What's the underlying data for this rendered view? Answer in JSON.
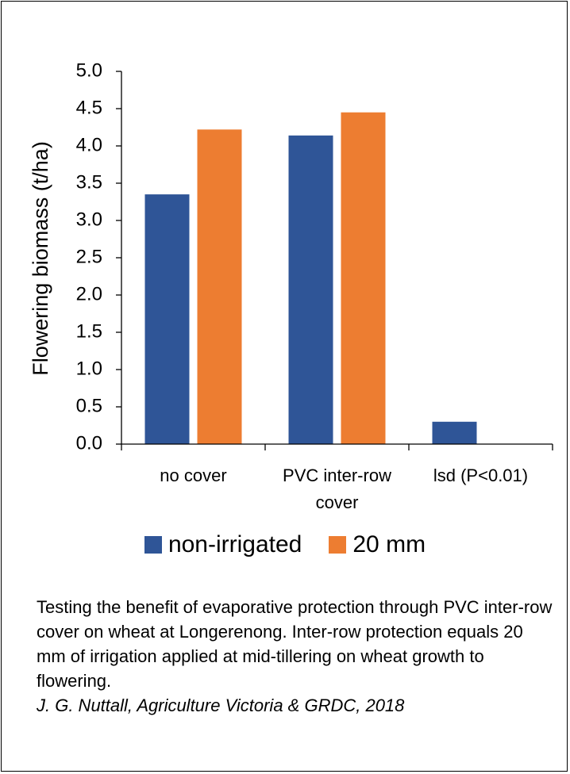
{
  "chart_data": {
    "type": "bar",
    "categories": [
      [
        "no cover"
      ],
      [
        "PVC inter-row",
        "cover"
      ],
      [
        "lsd (P<0.01)"
      ]
    ],
    "series": [
      {
        "name": "non-irrigated",
        "color": "#2F5597",
        "values": [
          3.35,
          4.14,
          0.3
        ]
      },
      {
        "name": "20 mm",
        "color": "#ED7D31",
        "values": [
          4.22,
          4.45,
          null
        ]
      }
    ],
    "yticks": [
      "0.0",
      "0.5",
      "1.0",
      "1.5",
      "2.0",
      "2.5",
      "3.0",
      "3.5",
      "4.0",
      "4.5",
      "5.0"
    ],
    "ylabel": "Flowering biomass (t/ha)",
    "ylim": [
      0,
      5
    ],
    "legend_position": "bottom",
    "grid": false
  },
  "caption": {
    "text": "Testing the benefit of evaporative protection through PVC inter-row cover on wheat at Longerenong.  Inter-row protection equals 20 mm of irrigation applied at mid-tillering on wheat growth to flowering.",
    "citation": "J. G. Nuttall, Agriculture Victoria & GRDC, 2018"
  }
}
